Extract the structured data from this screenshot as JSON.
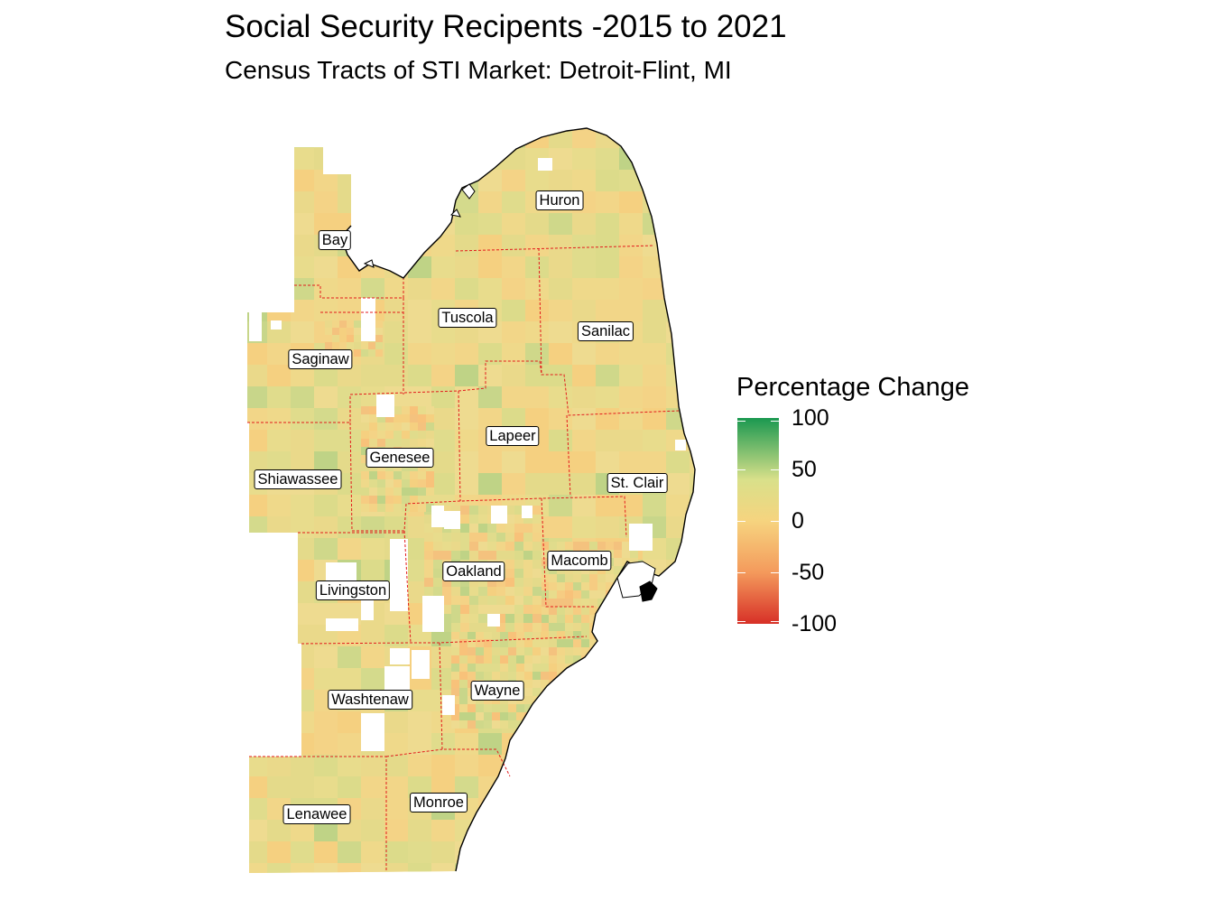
{
  "title": "Social Security Recipents -2015 to 2021",
  "subtitle": "Census Tracts of STI Market: Detroit-Flint, MI",
  "legend": {
    "title": "Percentage Change",
    "ticks": [
      "100",
      "50",
      "0",
      "-50",
      "-100"
    ],
    "colors": {
      "high": "#1a9850",
      "mid_high": "#d9e08a",
      "zero": "#f6d47f",
      "mid_low": "#f49a5c",
      "low": "#d73027"
    },
    "range": [
      -100,
      100
    ]
  },
  "colors": {
    "boundary": "#e31a1c",
    "base_fill": "#eed98a",
    "no_data": "#ffffff",
    "coast": "#000000"
  },
  "counties": [
    {
      "name": "Huron"
    },
    {
      "name": "Bay"
    },
    {
      "name": "Tuscola"
    },
    {
      "name": "Sanilac"
    },
    {
      "name": "Saginaw"
    },
    {
      "name": "Genesee"
    },
    {
      "name": "Lapeer"
    },
    {
      "name": "Shiawassee"
    },
    {
      "name": "St. Clair"
    },
    {
      "name": "Oakland"
    },
    {
      "name": "Macomb"
    },
    {
      "name": "Livingston"
    },
    {
      "name": "Wayne"
    },
    {
      "name": "Washtenaw"
    },
    {
      "name": "Monroe"
    },
    {
      "name": "Lenawee"
    }
  ]
}
